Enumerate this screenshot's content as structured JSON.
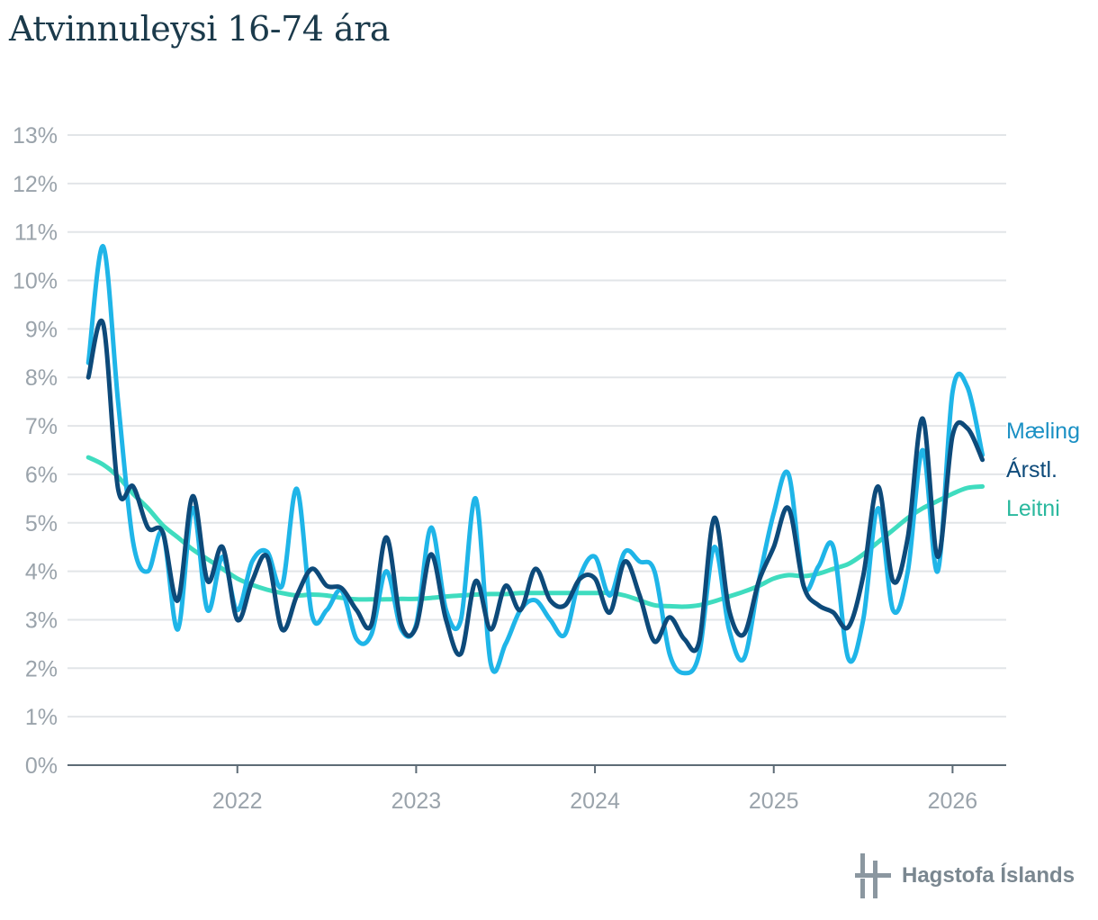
{
  "title": "Atvinnuleysi 16-74 ára",
  "footer": {
    "brand": "Hagstofa Íslands"
  },
  "colors": {
    "maeling": "#1fb5e8",
    "arstl": "#0d4a7a",
    "leitni": "#3fdcbf",
    "grid": "#e2e5e8",
    "axis": "#5d6b76",
    "tick": "#9aa3ab"
  },
  "chart_data": {
    "type": "line",
    "title": "Atvinnuleysi 16-74 ára",
    "xlabel": "",
    "ylabel": "",
    "ylim": [
      0,
      13
    ],
    "xlim": [
      2021.05,
      2026.3
    ],
    "yticks": [
      0,
      1,
      2,
      3,
      4,
      5,
      6,
      7,
      8,
      9,
      10,
      11,
      12,
      13
    ],
    "ytick_labels": [
      "0%",
      "1%",
      "2%",
      "3%",
      "4%",
      "5%",
      "6%",
      "7%",
      "8%",
      "9%",
      "10%",
      "11%",
      "12%",
      "13%"
    ],
    "xticks": [
      2022,
      2023,
      2024,
      2025,
      2026
    ],
    "xtick_labels": [
      "2022",
      "2023",
      "2024",
      "2025",
      "2026"
    ],
    "grid": true,
    "x": [
      2021.167,
      2021.25,
      2021.333,
      2021.417,
      2021.5,
      2021.583,
      2021.667,
      2021.75,
      2021.833,
      2021.917,
      2022.0,
      2022.083,
      2022.167,
      2022.25,
      2022.333,
      2022.417,
      2022.5,
      2022.583,
      2022.667,
      2022.75,
      2022.833,
      2022.917,
      2023.0,
      2023.083,
      2023.167,
      2023.25,
      2023.333,
      2023.417,
      2023.5,
      2023.583,
      2023.667,
      2023.75,
      2023.833,
      2023.917,
      2024.0,
      2024.083,
      2024.167,
      2024.25,
      2024.333,
      2024.417,
      2024.5,
      2024.583,
      2024.667,
      2024.75,
      2024.833,
      2024.917,
      2025.0,
      2025.083,
      2025.167,
      2025.25,
      2025.333,
      2025.417,
      2025.5,
      2025.583,
      2025.667,
      2025.75,
      2025.833,
      2025.917,
      2026.0,
      2026.083,
      2026.167
    ],
    "series": [
      {
        "name": "Mæling",
        "color": "#1fb5e8",
        "values": [
          8.3,
          10.7,
          7.5,
          4.6,
          4.0,
          4.8,
          2.8,
          5.3,
          3.2,
          4.3,
          3.2,
          4.2,
          4.4,
          3.7,
          5.7,
          3.1,
          3.2,
          3.6,
          2.6,
          2.7,
          4.0,
          2.8,
          2.9,
          4.9,
          3.2,
          3.0,
          5.5,
          2.1,
          2.5,
          3.2,
          3.4,
          3.0,
          2.7,
          3.9,
          4.3,
          3.5,
          4.4,
          4.2,
          4.0,
          2.3,
          1.9,
          2.3,
          4.5,
          2.8,
          2.2,
          3.8,
          5.2,
          6.0,
          3.7,
          4.1,
          4.5,
          2.2,
          3.0,
          5.3,
          3.2,
          4.0,
          6.5,
          4.0,
          7.7,
          7.8,
          6.4
        ]
      },
      {
        "name": "Árstl.",
        "color": "#0d4a7a",
        "values": [
          8.0,
          9.1,
          5.7,
          5.75,
          4.9,
          4.8,
          3.4,
          5.55,
          3.8,
          4.5,
          3.0,
          3.8,
          4.3,
          2.8,
          3.5,
          4.05,
          3.7,
          3.65,
          3.2,
          2.9,
          4.7,
          2.9,
          2.85,
          4.35,
          3.0,
          2.3,
          3.8,
          2.8,
          3.7,
          3.2,
          4.05,
          3.4,
          3.3,
          3.85,
          3.85,
          3.15,
          4.2,
          3.5,
          2.55,
          3.05,
          2.6,
          2.55,
          5.1,
          3.2,
          2.7,
          3.8,
          4.5,
          5.3,
          3.7,
          3.3,
          3.15,
          2.85,
          3.9,
          5.75,
          3.8,
          4.7,
          7.15,
          4.3,
          6.8,
          6.95,
          6.3
        ]
      },
      {
        "name": "Leitni",
        "color": "#3fdcbf",
        "values": [
          6.35,
          6.2,
          5.95,
          5.6,
          5.3,
          4.95,
          4.7,
          4.45,
          4.25,
          4.05,
          3.85,
          3.72,
          3.62,
          3.55,
          3.5,
          3.52,
          3.5,
          3.45,
          3.42,
          3.42,
          3.42,
          3.43,
          3.43,
          3.45,
          3.48,
          3.5,
          3.52,
          3.53,
          3.53,
          3.55,
          3.55,
          3.55,
          3.55,
          3.55,
          3.55,
          3.55,
          3.5,
          3.4,
          3.3,
          3.28,
          3.27,
          3.3,
          3.38,
          3.48,
          3.58,
          3.7,
          3.85,
          3.92,
          3.9,
          3.95,
          4.05,
          4.15,
          4.35,
          4.6,
          4.85,
          5.1,
          5.3,
          5.45,
          5.6,
          5.72,
          5.75
        ]
      }
    ],
    "series_labels": [
      "Mæling",
      "Árstl.",
      "Leitni"
    ]
  }
}
